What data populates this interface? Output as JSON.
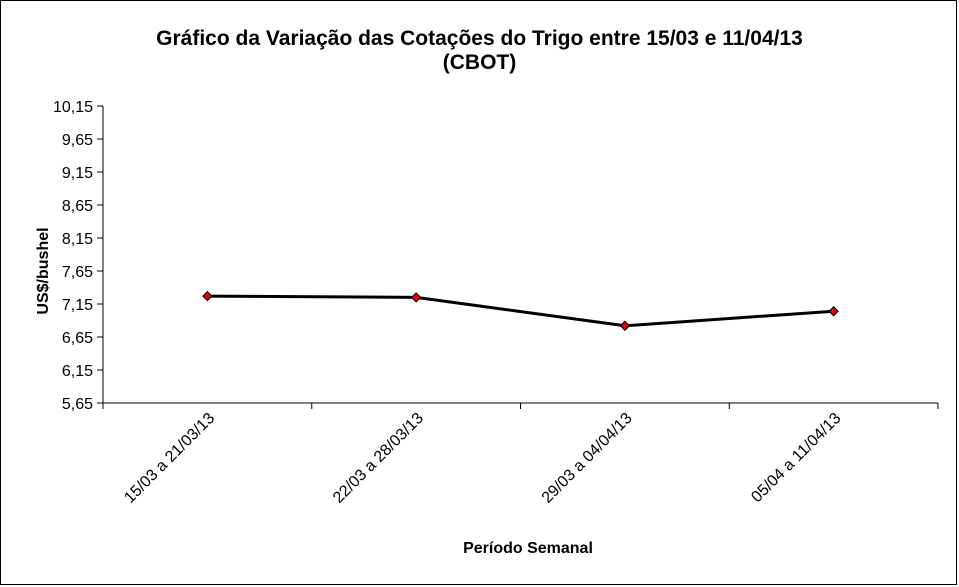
{
  "chart_data": {
    "type": "line",
    "title": "Gráfico da Variação das Cotações do Trigo entre 15/03 e 11/04/13",
    "subtitle": "(CBOT)",
    "xlabel": "Período Semanal",
    "ylabel": "US$/bushel",
    "categories": [
      "15/03 a 21/03/13",
      "22/03 a 28/03/13",
      "29/03 a 04/04/13",
      "05/04 a 11/04/13"
    ],
    "y_ticks": [
      "5,65",
      "6,15",
      "6,65",
      "7,15",
      "7,65",
      "8,15",
      "8,65",
      "9,15",
      "9,65",
      "10,15"
    ],
    "ylim": [
      5.65,
      10.15
    ],
    "series": [
      {
        "values": [
          7.27,
          7.25,
          6.82,
          7.04
        ]
      }
    ],
    "line_color": "#000000",
    "marker_color": "#e00000",
    "grid": false,
    "legend": "none"
  }
}
